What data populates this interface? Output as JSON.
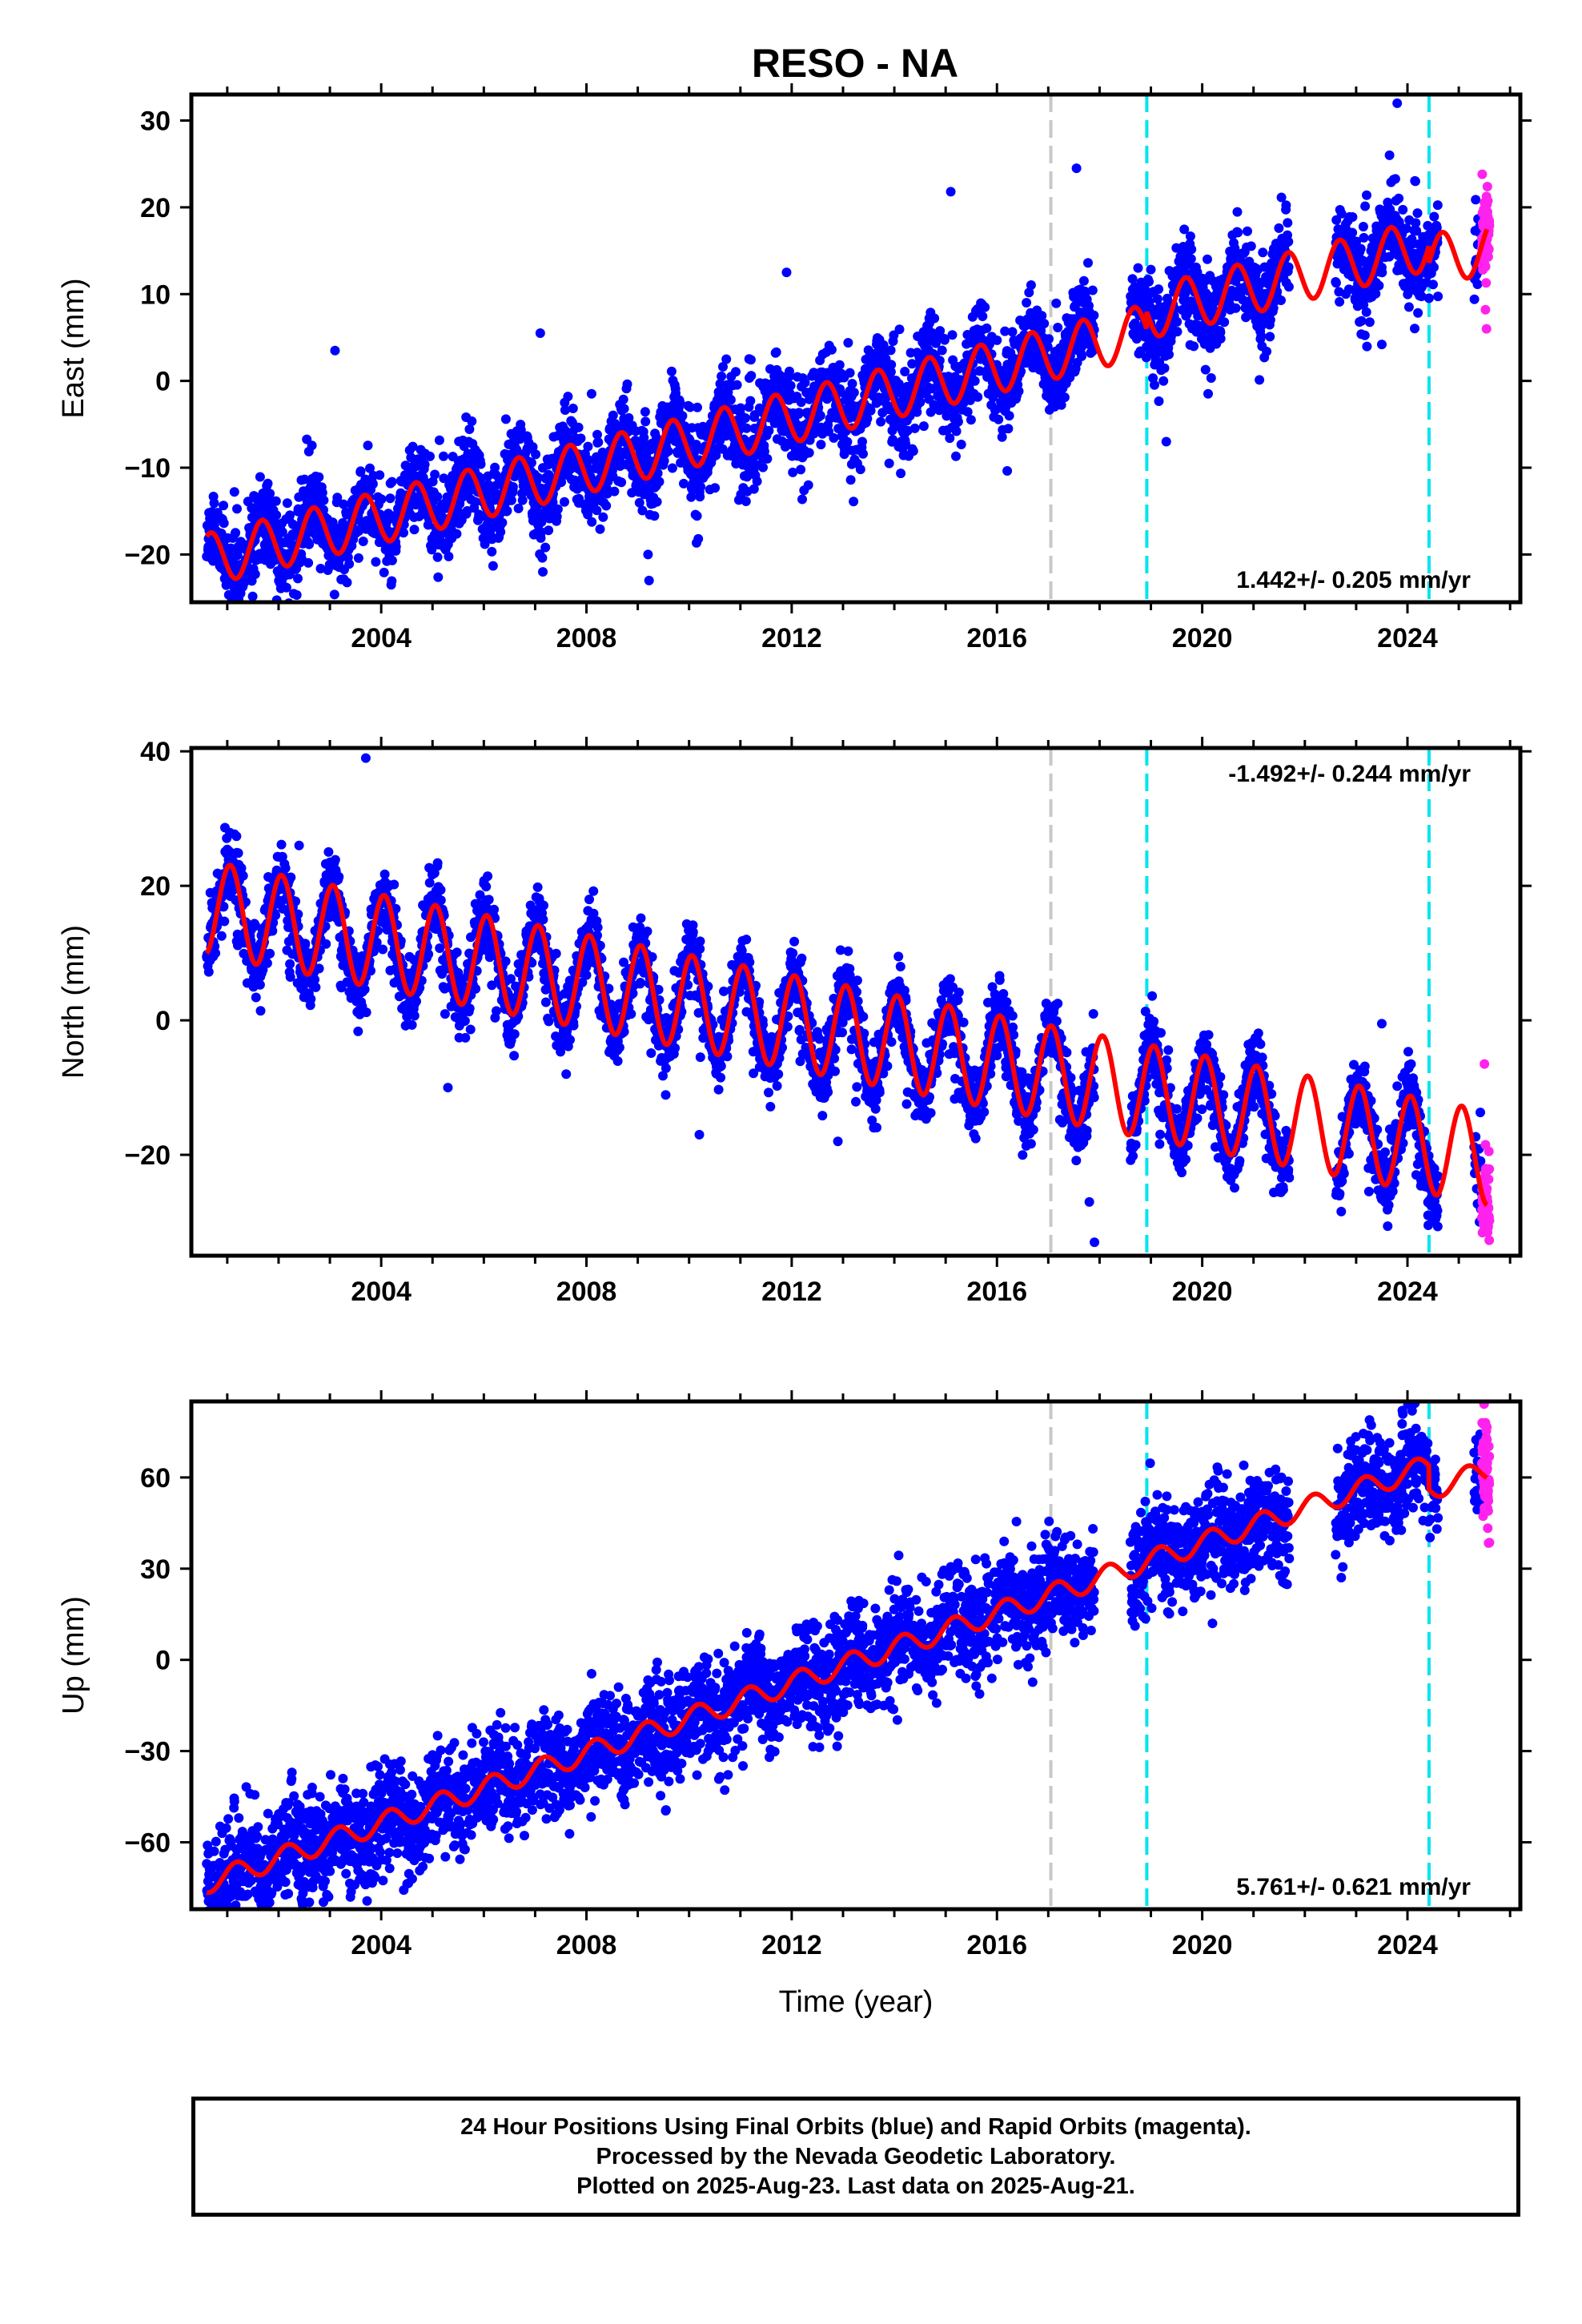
{
  "title": "RESO - NA",
  "colors": {
    "final": "#0000ff",
    "rapid": "#ff22ee",
    "model": "#ff0000",
    "break_gray": "#c8c8c8",
    "break_cyan": "#00e5ee"
  },
  "chart_data": [
    {
      "type": "scatter",
      "component": "east",
      "ylabel": "East (mm)",
      "xlabel": "",
      "rate_text": "1.442+/- 0.205 mm/yr",
      "xlim": [
        2000.3,
        2026.2
      ],
      "ylim": [
        -25.5,
        33
      ],
      "yticks": [
        -20,
        -10,
        0,
        10,
        20,
        30
      ],
      "xticks": [
        2004,
        2008,
        2012,
        2016,
        2020,
        2024
      ],
      "ytick_labels": [
        "−20",
        "−10",
        "0",
        "10",
        "20",
        "30"
      ],
      "xtick_labels": [
        "2004",
        "2008",
        "2012",
        "2016",
        "2020",
        "2024"
      ],
      "vlines": [
        {
          "x": 2017.05,
          "color": "gray"
        },
        {
          "x": 2018.92,
          "color": "cyan"
        },
        {
          "x": 2024.42,
          "color": "cyan"
        }
      ],
      "model": {
        "ref_year": 2013.5,
        "ref_value": -2.0,
        "rate": 1.442,
        "amp": 3.0,
        "phase": 3.6,
        "offsets": [
          {
            "x": 2018.92,
            "value": 2.0
          },
          {
            "x": 2024.42,
            "value": -2.0
          }
        ]
      },
      "data_span": [
        2000.6,
        2025.55
      ],
      "gaps": [
        [
          2017.9,
          2018.6
        ],
        [
          2021.7,
          2022.6
        ],
        [
          2024.6,
          2025.3
        ]
      ],
      "scatter_sd": 2.4,
      "rapid_span": [
        2025.45,
        2025.6
      ],
      "rapid_points": [
        {
          "x": 2025.52,
          "y": 8.2
        },
        {
          "x": 2025.54,
          "y": 6.0
        },
        {
          "x": 2025.5,
          "y": 13.5
        }
      ],
      "outliers": [
        {
          "x": 2009.2,
          "y": -20
        },
        {
          "x": 2009.22,
          "y": -23
        },
        {
          "x": 2019.3,
          "y": -7
        },
        {
          "x": 2013.9,
          "y": -9.5
        },
        {
          "x": 2003.1,
          "y": 3.5
        },
        {
          "x": 2007.1,
          "y": 5.5
        },
        {
          "x": 2017.55,
          "y": 24.5
        },
        {
          "x": 2023.8,
          "y": 32
        },
        {
          "x": 2023.5,
          "y": 4.2
        },
        {
          "x": 2011.9,
          "y": 12.5
        },
        {
          "x": 2015.1,
          "y": 21.8
        },
        {
          "x": 2002.8,
          "y": -14.5
        },
        {
          "x": 2007.15,
          "y": -22
        }
      ],
      "seed": 11
    },
    {
      "type": "scatter",
      "component": "north",
      "ylabel": "North (mm)",
      "xlabel": "",
      "rate_text": "-1.492+/- 0.244 mm/yr",
      "xlim": [
        2000.3,
        2026.2
      ],
      "ylim": [
        -35,
        40.5
      ],
      "yticks": [
        -20,
        0,
        20,
        40
      ],
      "xticks": [
        2004,
        2008,
        2012,
        2016,
        2020,
        2024
      ],
      "ytick_labels": [
        "−20",
        "0",
        "20",
        "40"
      ],
      "xtick_labels": [
        "2004",
        "2008",
        "2012",
        "2016",
        "2020",
        "2024"
      ],
      "vlines": [
        {
          "x": 2017.05,
          "color": "gray"
        },
        {
          "x": 2018.92,
          "color": "cyan"
        },
        {
          "x": 2024.42,
          "color": "cyan"
        }
      ],
      "model": {
        "ref_year": 2013.5,
        "ref_value": -2.5,
        "rate": -1.492,
        "amp": 7.0,
        "phase": 1.2,
        "offsets": [
          {
            "x": 2018.92,
            "value": 0.0
          },
          {
            "x": 2024.42,
            "value": 0.0
          }
        ]
      },
      "data_span": [
        2000.6,
        2025.55
      ],
      "gaps": [
        [
          2017.9,
          2018.6
        ],
        [
          2021.7,
          2022.6
        ],
        [
          2024.6,
          2025.3
        ]
      ],
      "scatter_sd": 2.6,
      "rapid_span": [
        2025.45,
        2025.6
      ],
      "rapid_points": [
        {
          "x": 2025.52,
          "y": -18.5
        },
        {
          "x": 2025.5,
          "y": -6.5
        }
      ],
      "outliers": [
        {
          "x": 2003.7,
          "y": 39
        },
        {
          "x": 2017.9,
          "y": -33
        },
        {
          "x": 2017.8,
          "y": -27
        },
        {
          "x": 2010.2,
          "y": -17
        },
        {
          "x": 2024.4,
          "y": -29
        },
        {
          "x": 2005.3,
          "y": -10
        },
        {
          "x": 2002.4,
          "y": 26
        },
        {
          "x": 2023.5,
          "y": -0.5
        },
        {
          "x": 2012.9,
          "y": -18
        }
      ],
      "seed": 29
    },
    {
      "type": "scatter",
      "component": "up",
      "ylabel": "Up (mm)",
      "xlabel": "Time (year)",
      "rate_text": "5.761+/- 0.621 mm/yr",
      "xlim": [
        2000.3,
        2026.2
      ],
      "ylim": [
        -82,
        85
      ],
      "yticks": [
        -60,
        -30,
        0,
        30,
        60
      ],
      "xticks": [
        2004,
        2008,
        2012,
        2016,
        2020,
        2024
      ],
      "ytick_labels": [
        "−60",
        "−30",
        "0",
        "30",
        "60"
      ],
      "xtick_labels": [
        "2004",
        "2008",
        "2012",
        "2016",
        "2020",
        "2024"
      ],
      "vlines": [
        {
          "x": 2017.05,
          "color": "gray"
        },
        {
          "x": 2018.92,
          "color": "cyan"
        },
        {
          "x": 2024.42,
          "color": "cyan"
        }
      ],
      "model": {
        "ref_year": 2013.5,
        "ref_value": 1.0,
        "rate": 5.761,
        "amp": 3.5,
        "phase": 0.5,
        "offsets": [
          {
            "x": 2018.92,
            "value": 0.0
          },
          {
            "x": 2024.42,
            "value": -8.0
          }
        ]
      },
      "data_span": [
        2000.6,
        2025.55
      ],
      "gaps": [
        [
          2017.9,
          2018.6
        ],
        [
          2021.7,
          2022.6
        ],
        [
          2024.6,
          2025.3
        ]
      ],
      "scatter_sd": 8.5,
      "rapid_span": [
        2025.45,
        2025.6
      ],
      "rapid_points": [
        {
          "x": 2025.52,
          "y": 78
        },
        {
          "x": 2025.5,
          "y": 50
        }
      ],
      "outliers": [
        {
          "x": 2023.9,
          "y": 82
        },
        {
          "x": 2003.4,
          "y": -78
        },
        {
          "x": 2000.9,
          "y": -57
        },
        {
          "x": 2020.2,
          "y": 12
        },
        {
          "x": 2002.5,
          "y": -73
        }
      ],
      "seed": 47
    }
  ],
  "footer": {
    "line1": "24 Hour Positions Using Final Orbits (blue) and Rapid Orbits (magenta).",
    "line2": "Processed by the Nevada Geodetic Laboratory.",
    "line3": "Plotted on 2025-Aug-23. Last data on 2025-Aug-21."
  }
}
